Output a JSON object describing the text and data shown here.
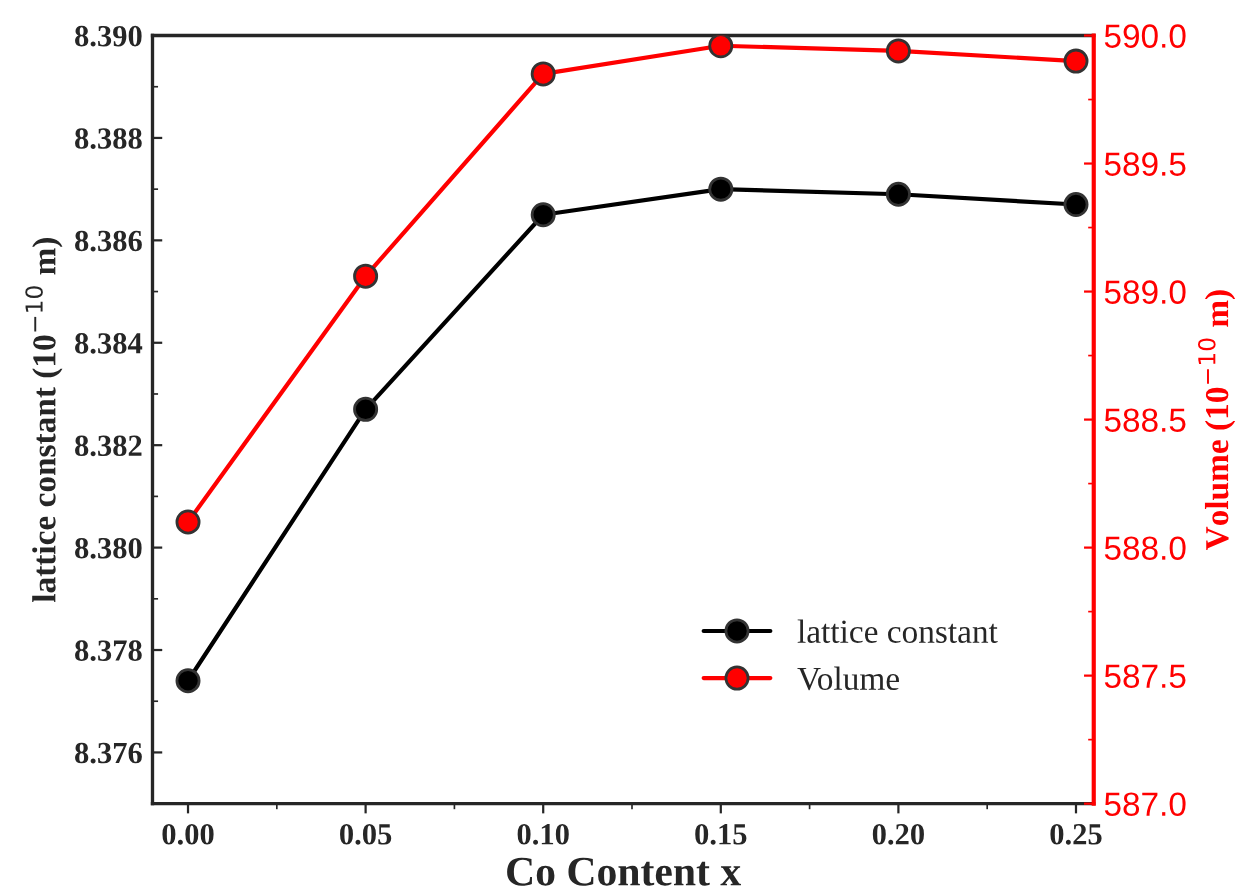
{
  "chart_data": {
    "type": "line",
    "xlabel": "Co Content x",
    "ylabel": "lattice constant (10$^{−10}$ m)",
    "y2label": "Volume (10$^{−10}$ m)",
    "x": [
      0.0,
      0.05,
      0.1,
      0.15,
      0.2,
      0.25
    ],
    "series": [
      {
        "name": "lattice constant",
        "color": "#000000",
        "values": [
          8.3774,
          8.3827,
          8.3865,
          8.387,
          8.3869,
          8.3867
        ]
      },
      {
        "name": "Volume",
        "color": "#ff0000",
        "axis": "y2",
        "values": [
          588.1,
          589.06,
          589.85,
          589.96,
          589.94,
          589.9
        ]
      }
    ],
    "xlim": [
      -0.01,
      0.255
    ],
    "xticks": [
      {
        "value": 0.0,
        "label": "0.00"
      },
      {
        "value": 0.05,
        "label": "0.05"
      },
      {
        "value": 0.1,
        "label": "0.10"
      },
      {
        "value": 0.15,
        "label": "0.15"
      },
      {
        "value": 0.2,
        "label": "0.20"
      },
      {
        "value": 0.25,
        "label": "0.25"
      }
    ],
    "ylim": [
      8.375,
      8.39
    ],
    "yticks": [
      8.376,
      8.378,
      {
        "value": 8.38,
        "label": "8.380"
      },
      8.382,
      8.384,
      8.386,
      8.388,
      {
        "value": 8.39,
        "label": "8.390"
      }
    ],
    "y2lim": [
      587.0,
      590.0
    ],
    "y2ticks": [
      {
        "value": 587,
        "label": "587.0"
      },
      587.5,
      {
        "value": 588,
        "label": "588.0"
      },
      588.5,
      {
        "value": 589,
        "label": "589.0"
      },
      589.5,
      {
        "value": 590,
        "label": "590.0"
      }
    ],
    "marker": "circle",
    "line_style": "solid",
    "legend": "bottom right",
    "grid": false
  }
}
